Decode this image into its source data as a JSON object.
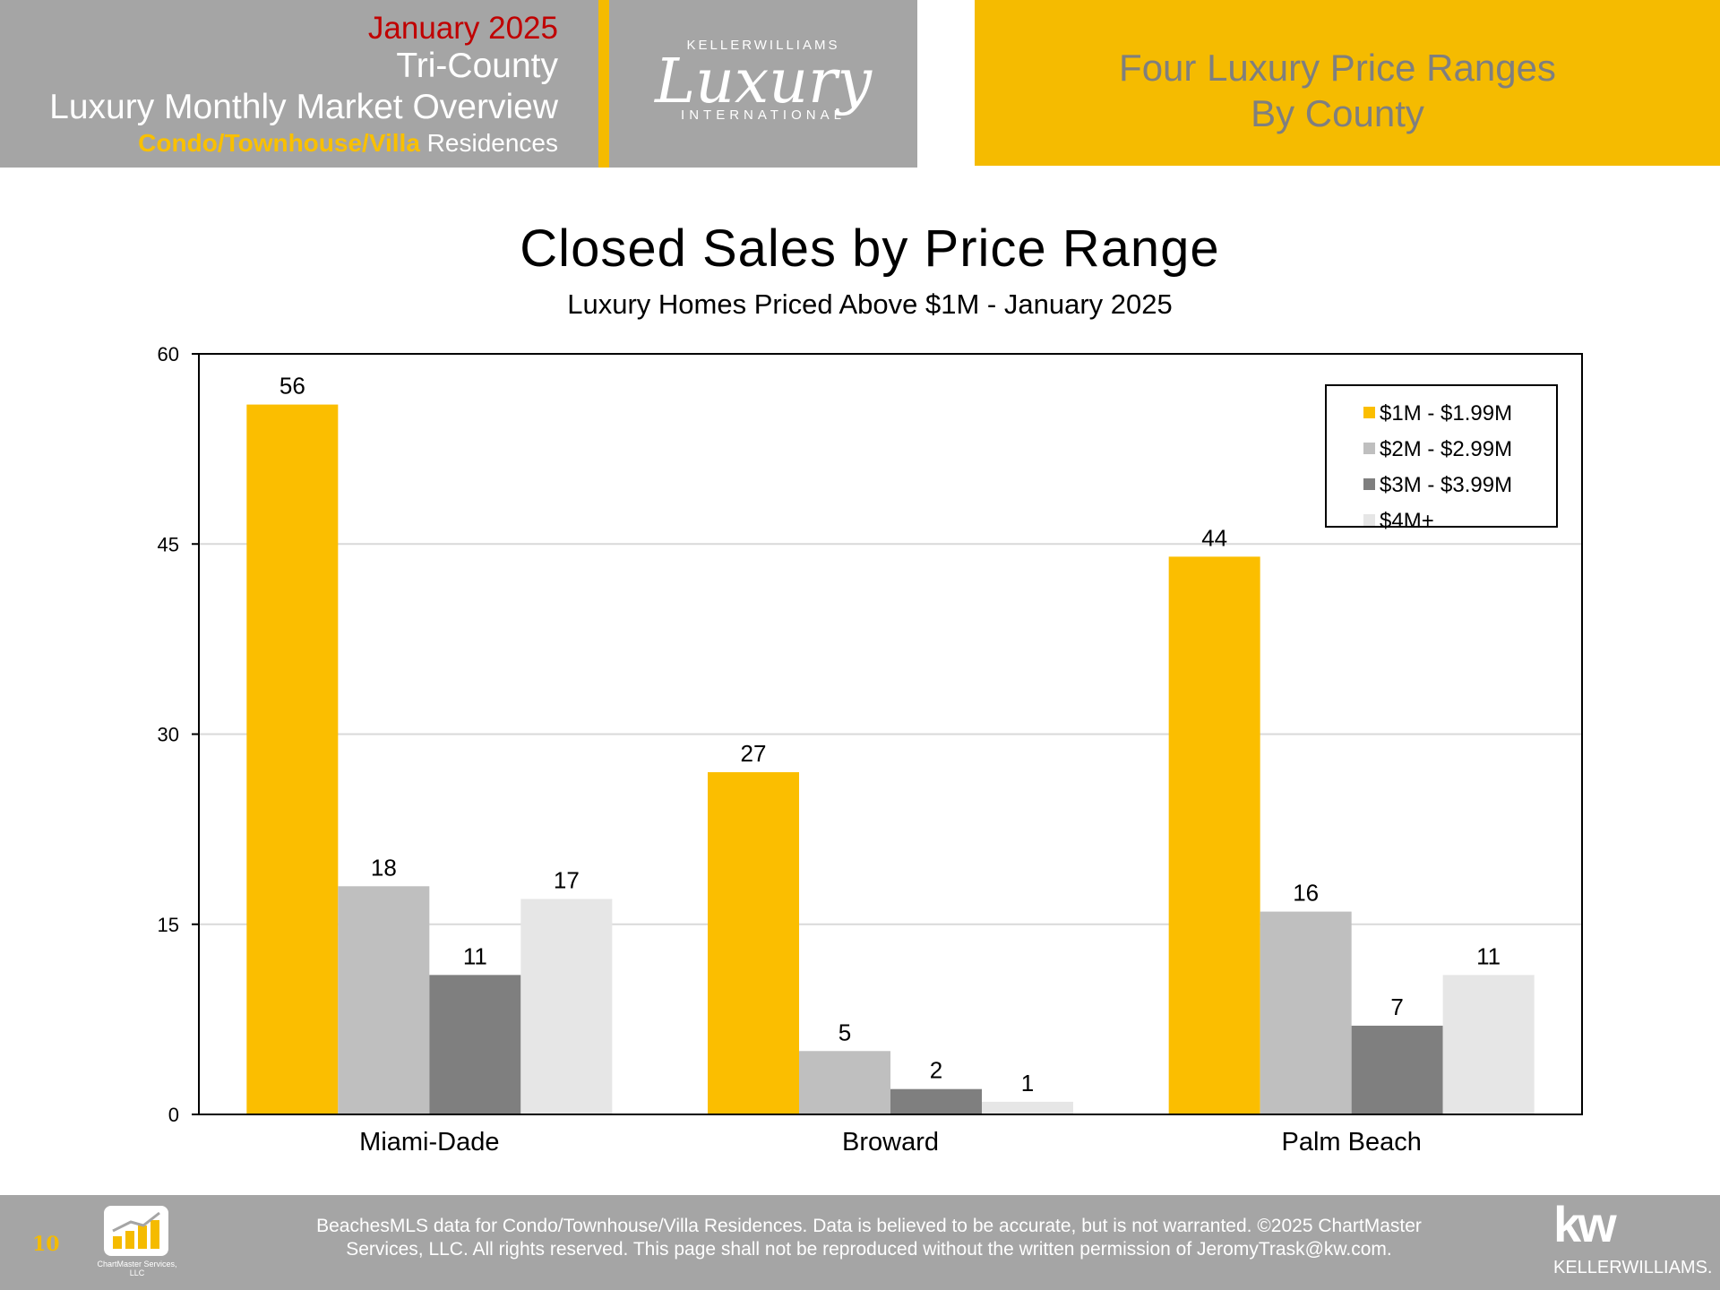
{
  "header": {
    "date": "January 2025",
    "region": "Tri-County",
    "overview": "Luxury Monthly Market Overview",
    "type_highlight": "Condo/Townhouse/Villa",
    "type_suffix": " Residences"
  },
  "logo": {
    "brand_top": "KELLERWILLIAMS",
    "brand_script": "Luxury",
    "brand_bottom": "INTERNATIONAL"
  },
  "banner": {
    "line1": "Four Luxury Price Ranges",
    "line2": "By County"
  },
  "chart_data": {
    "type": "bar",
    "title": "Closed Sales by Price Range",
    "subtitle": "Luxury Homes Priced Above $1M - January 2025",
    "xlabel": "",
    "ylabel": "",
    "categories": [
      "Miami-Dade",
      "Broward",
      "Palm Beach"
    ],
    "series": [
      {
        "name": "$1M - $1.99M",
        "values": [
          56,
          27,
          44
        ],
        "color": "#fbbe00"
      },
      {
        "name": "$2M - $2.99M",
        "values": [
          18,
          5,
          16
        ],
        "color": "#bfbfbf"
      },
      {
        "name": "$3M - $3.99M",
        "values": [
          11,
          2,
          7
        ],
        "color": "#7f7f7f"
      },
      {
        "name": "$4M+",
        "values": [
          17,
          1,
          11
        ],
        "color": "#e6e6e6"
      }
    ],
    "ylim": [
      0,
      60
    ],
    "yticks": [
      0,
      15,
      30,
      45,
      60
    ],
    "grid": true,
    "legend_position": "top-right",
    "data_labels": true
  },
  "footer": {
    "page_number": "10",
    "chartmaster_logo_text": "ChartMaster Services, LLC",
    "disclaimer_line1": "BeachesMLS data for Condo/Townhouse/Villa Residences.  Data is believed to be accurate, but is not warranted.   ©2025  ChartMaster",
    "disclaimer_line2": "Services, LLC.  All rights reserved. This page shall not be reproduced without the written permission of JeromyTrask@kw.com.",
    "kw_mark": "kw",
    "kw_name": "KELLERWILLIAMS."
  }
}
